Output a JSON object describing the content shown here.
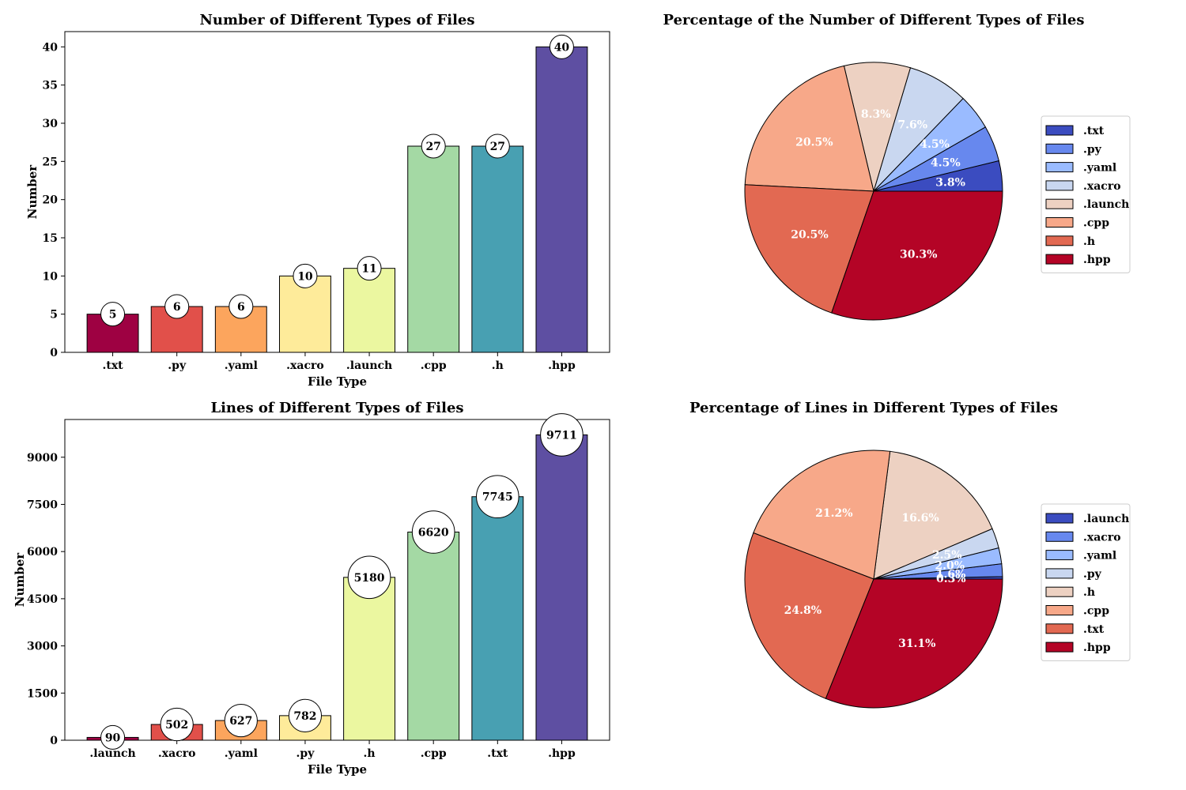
{
  "chart_data": [
    {
      "type": "bar",
      "title": "Number of Different Types of Files",
      "xlabel": "File Type",
      "ylabel": "Number",
      "categories": [
        ".txt",
        ".py",
        ".yaml",
        ".xacro",
        ".launch",
        ".cpp",
        ".h",
        ".hpp"
      ],
      "values": [
        5,
        6,
        6,
        10,
        11,
        27,
        27,
        40
      ],
      "data_labels": [
        "5",
        "6",
        "6",
        "10",
        "11",
        "27",
        "27",
        "40"
      ],
      "colors": [
        "#9e0142",
        "#e1504a",
        "#fca55d",
        "#feeb9a",
        "#ebf7a0",
        "#a4d9a4",
        "#48a0b2",
        "#5e4fa2"
      ],
      "ylim": [
        0,
        42
      ],
      "yticks": [
        0,
        5,
        10,
        15,
        20,
        25,
        30,
        35,
        40
      ],
      "ytick_labels": [
        "0",
        "5",
        "10",
        "15",
        "20",
        "25",
        "30",
        "35",
        "40"
      ],
      "grid": false
    },
    {
      "type": "pie",
      "title": "Percentage of the Number of Different Types of Files",
      "labels": [
        ".txt",
        ".py",
        ".yaml",
        ".xacro",
        ".launch",
        ".cpp",
        ".h",
        ".hpp"
      ],
      "values": [
        3.8,
        4.5,
        4.5,
        7.6,
        8.3,
        20.5,
        20.5,
        30.3
      ],
      "pct_labels": [
        "3.8%",
        "4.5%",
        "4.5%",
        "7.6%",
        "8.3%",
        "20.5%",
        "20.5%",
        "30.3%"
      ],
      "colors": [
        "#3b4cc0",
        "#6788ee",
        "#9abbff",
        "#c9d7f0",
        "#edd1c2",
        "#f7a889",
        "#e26952",
        "#b40426"
      ],
      "legend": "right"
    },
    {
      "type": "bar",
      "title": "Lines of Different Types of Files",
      "xlabel": "File Type",
      "ylabel": "Number",
      "categories": [
        ".launch",
        ".xacro",
        ".yaml",
        ".py",
        ".h",
        ".cpp",
        ".txt",
        ".hpp"
      ],
      "values": [
        90,
        502,
        627,
        782,
        5180,
        6620,
        7745,
        9711
      ],
      "data_labels": [
        "90",
        "502",
        "627",
        "782",
        "5180",
        "6620",
        "7745",
        "9711"
      ],
      "colors": [
        "#9e0142",
        "#e1504a",
        "#fca55d",
        "#feeb9a",
        "#ebf7a0",
        "#a4d9a4",
        "#48a0b2",
        "#5e4fa2"
      ],
      "ylim": [
        0,
        10200
      ],
      "yticks": [
        0,
        1500,
        3000,
        4500,
        6000,
        7500,
        9000
      ],
      "ytick_labels": [
        "0",
        "1500",
        "3000",
        "4500",
        "6000",
        "7500",
        "9000"
      ],
      "grid": false
    },
    {
      "type": "pie",
      "title": "Percentage of Lines in Different Types of Files",
      "labels": [
        ".launch",
        ".xacro",
        ".yaml",
        ".py",
        ".h",
        ".cpp",
        ".txt",
        ".hpp"
      ],
      "values": [
        0.3,
        1.6,
        2.0,
        2.5,
        16.6,
        21.2,
        24.8,
        31.1
      ],
      "pct_labels": [
        "0.3%",
        "1.6%",
        "2.0%",
        "2.5%",
        "16.6%",
        "21.2%",
        "24.8%",
        "31.1%"
      ],
      "colors": [
        "#3b4cc0",
        "#6788ee",
        "#9abbff",
        "#c9d7f0",
        "#edd1c2",
        "#f7a889",
        "#e26952",
        "#b40426"
      ],
      "legend": "right"
    }
  ]
}
